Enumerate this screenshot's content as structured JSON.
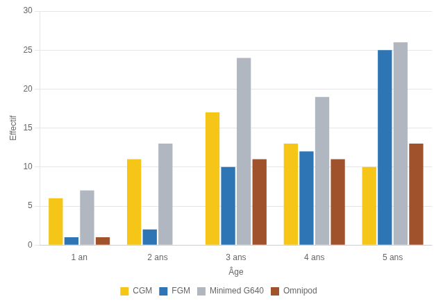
{
  "chart_data": {
    "type": "bar",
    "categories": [
      "1 an",
      "2 ans",
      "3 ans",
      "4 ans",
      "5 ans"
    ],
    "series": [
      {
        "name": "CGM",
        "color": "#F5C518",
        "values": [
          6,
          11,
          17,
          13,
          10
        ]
      },
      {
        "name": "FGM",
        "color": "#2E75B6",
        "values": [
          1,
          2,
          10,
          12,
          25
        ]
      },
      {
        "name": "Minimed G640",
        "color": "#B0B7C0",
        "values": [
          7,
          13,
          24,
          19,
          26
        ]
      },
      {
        "name": "Omnipod",
        "color": "#A0522D",
        "values": [
          1,
          0,
          11,
          11,
          13
        ]
      }
    ],
    "xlabel": "Âge",
    "ylabel": "Effectif",
    "ylim": [
      0,
      30
    ],
    "yticks": [
      0,
      5,
      10,
      15,
      20,
      25,
      30
    ],
    "grid": true,
    "legend": "bottom"
  }
}
